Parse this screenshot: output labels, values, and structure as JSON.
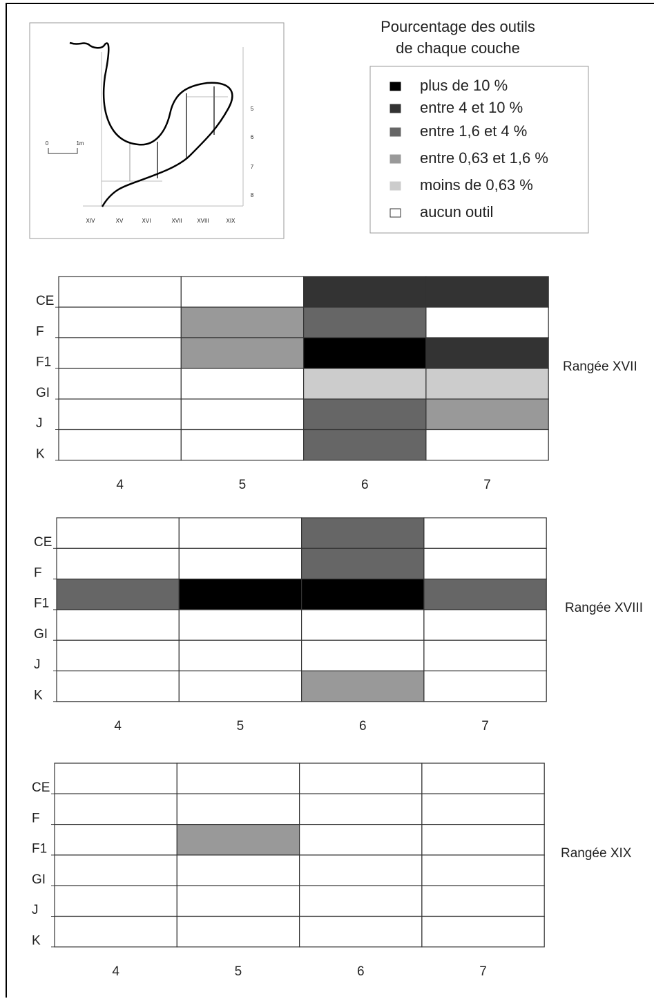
{
  "inset": {
    "scale": [
      "0",
      "1m"
    ],
    "depths": [
      "5",
      "6",
      "7",
      "8"
    ],
    "rows": [
      "XIV",
      "XV",
      "XVI",
      "XVII",
      "XVIII",
      "XIX"
    ]
  },
  "legend": {
    "title": [
      "Pourcentage des outils",
      "de chaque couche"
    ],
    "entries": [
      {
        "label": "plus de 10 %",
        "color": "#000000"
      },
      {
        "label": "entre 4 et 10 %",
        "color": "#333333"
      },
      {
        "label": "entre 1,6 et 4 %",
        "color": "#666666"
      },
      {
        "label": "entre 0,63 et 1,6 %",
        "color": "#999999"
      },
      {
        "label": "moins de 0,63 %",
        "color": "#cccccc"
      },
      {
        "label": "aucun outil",
        "color": "#ffffff"
      }
    ]
  },
  "grids": [
    {
      "name": "Rangée XVII",
      "layers": [
        "CE",
        "F",
        "F1",
        "GI",
        "J",
        "K"
      ],
      "squares": [
        "4",
        "5",
        "6",
        "7"
      ],
      "cells": [
        [
          "#ffffff",
          "#ffffff",
          "#333333",
          "#333333"
        ],
        [
          "#ffffff",
          "#999999",
          "#666666",
          "#ffffff"
        ],
        [
          "#ffffff",
          "#999999",
          "#000000",
          "#333333"
        ],
        [
          "#ffffff",
          "#ffffff",
          "#cccccc",
          "#cccccc"
        ],
        [
          "#ffffff",
          "#ffffff",
          "#666666",
          "#999999"
        ],
        [
          "#ffffff",
          "#ffffff",
          "#666666",
          "#ffffff"
        ]
      ]
    },
    {
      "name": "Rangée XVIII",
      "layers": [
        "CE",
        "F",
        "F1",
        "GI",
        "J",
        "K"
      ],
      "squares": [
        "4",
        "5",
        "6",
        "7"
      ],
      "cells": [
        [
          "#ffffff",
          "#ffffff",
          "#666666",
          "#ffffff"
        ],
        [
          "#ffffff",
          "#ffffff",
          "#666666",
          "#ffffff"
        ],
        [
          "#666666",
          "#000000",
          "#000000",
          "#666666"
        ],
        [
          "#ffffff",
          "#ffffff",
          "#ffffff",
          "#ffffff"
        ],
        [
          "#ffffff",
          "#ffffff",
          "#ffffff",
          "#ffffff"
        ],
        [
          "#ffffff",
          "#ffffff",
          "#999999",
          "#ffffff"
        ]
      ]
    },
    {
      "name": "Rangée XIX",
      "layers": [
        "CE",
        "F",
        "F1",
        "GI",
        "J",
        "K"
      ],
      "squares": [
        "4",
        "5",
        "6",
        "7"
      ],
      "cells": [
        [
          "#ffffff",
          "#ffffff",
          "#ffffff",
          "#ffffff"
        ],
        [
          "#ffffff",
          "#ffffff",
          "#ffffff",
          "#ffffff"
        ],
        [
          "#ffffff",
          "#999999",
          "#ffffff",
          "#ffffff"
        ],
        [
          "#ffffff",
          "#ffffff",
          "#ffffff",
          "#ffffff"
        ],
        [
          "#ffffff",
          "#ffffff",
          "#ffffff",
          "#ffffff"
        ],
        [
          "#ffffff",
          "#ffffff",
          "#ffffff",
          "#ffffff"
        ]
      ]
    }
  ]
}
